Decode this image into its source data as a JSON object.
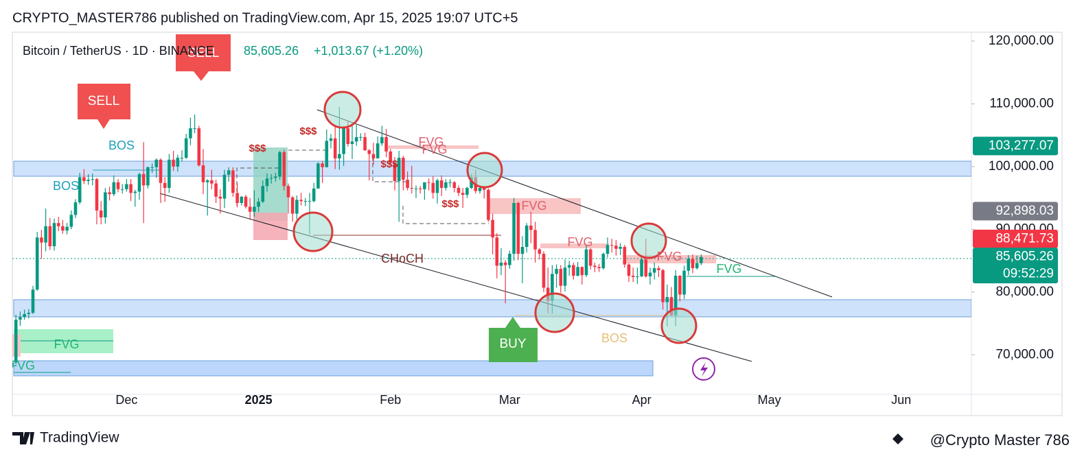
{
  "header": "CRYPTO_MASTER786 published on TradingView.com, Apr 15, 2025 19:07 UTC+5",
  "footer": {
    "brand": "TradingView",
    "watermark": "@Crypto Master 786"
  },
  "chart_data": {
    "type": "candlestick",
    "symbol": "Bitcoin / TetherUS · 1D · BINANCE",
    "last_price": "85,605.26",
    "change": "+1,013.67 (+1.20%)",
    "up_color": "#089981",
    "down_color": "#f23645",
    "grid": false,
    "ylim": [
      63700,
      121300
    ],
    "yticks": [
      {
        "value": 70000,
        "label": "70,000.00"
      },
      {
        "value": 80000,
        "label": "80,000.00"
      },
      {
        "value": 90000,
        "label": "90,000.00"
      },
      {
        "value": 100000,
        "label": "100,000.00"
      },
      {
        "value": 110000,
        "label": "110,000.00"
      },
      {
        "value": 120000,
        "label": "120,000.00"
      }
    ],
    "xticks": [
      "Dec",
      "2025",
      "Feb",
      "Mar",
      "Apr",
      "May",
      "Jun"
    ],
    "price_tags": [
      {
        "value": 103277.07,
        "label": "103,277.07",
        "color": "#089981"
      },
      {
        "value": 92898.03,
        "label": "92,898.03",
        "color": "#787b86"
      },
      {
        "value": 88471.73,
        "label": "88,471.73",
        "color": "#f23645"
      },
      {
        "value": 85605.26,
        "label": "85,605.26",
        "color": "#089981"
      }
    ],
    "countdown": "09:52:29",
    "annotations": [
      "SELL",
      "SELL",
      "BOS",
      "BOS",
      "BOS",
      "FVG",
      "FVG",
      "FVG",
      "FVG",
      "FVG",
      "FVG",
      "FVG",
      "FVG",
      "$$$",
      "$$$",
      "$$$",
      "$$$",
      "CHoCH",
      "BUY"
    ],
    "candles": [
      [
        68000,
        69500,
        66800,
        68800
      ],
      [
        68800,
        76400,
        68500,
        75600
      ],
      [
        75600,
        76900,
        74600,
        76000
      ],
      [
        76000,
        77200,
        75600,
        76500
      ],
      [
        76500,
        77300,
        75800,
        76700
      ],
      [
        76700,
        81000,
        76500,
        80400
      ],
      [
        80400,
        89600,
        80200,
        88700
      ],
      [
        88700,
        89900,
        85300,
        87900
      ],
      [
        87900,
        93300,
        86500,
        90500
      ],
      [
        90500,
        91800,
        86700,
        87300
      ],
      [
        87300,
        91700,
        86600,
        91000
      ],
      [
        91000,
        92000,
        89700,
        90500
      ],
      [
        90500,
        91500,
        89300,
        89800
      ],
      [
        89800,
        91000,
        89200,
        90400
      ],
      [
        90400,
        93000,
        90000,
        92300
      ],
      [
        92300,
        94800,
        91800,
        94300
      ],
      [
        94300,
        99000,
        94000,
        98300
      ],
      [
        98300,
        99600,
        97200,
        97700
      ],
      [
        97700,
        98800,
        97100,
        97900
      ],
      [
        97900,
        98900,
        97000,
        98000
      ],
      [
        98000,
        98200,
        90800,
        93000
      ],
      [
        93000,
        94500,
        90800,
        91900
      ],
      [
        91900,
        96600,
        90900,
        95900
      ],
      [
        95900,
        96800,
        94600,
        95600
      ],
      [
        95600,
        98600,
        95300,
        97500
      ],
      [
        97500,
        98000,
        95900,
        96400
      ],
      [
        96400,
        97200,
        95700,
        96400
      ],
      [
        96400,
        98000,
        96000,
        97200
      ],
      [
        97200,
        98000,
        94500,
        95800
      ],
      [
        95800,
        96300,
        93600,
        96000
      ],
      [
        96000,
        99000,
        94700,
        98800
      ],
      [
        98800,
        103900,
        91000,
        97000
      ],
      [
        97000,
        100000,
        96500,
        99900
      ],
      [
        99900,
        100500,
        99000,
        99900
      ],
      [
        99900,
        101300,
        98200,
        101100
      ],
      [
        101100,
        101300,
        94200,
        97400
      ],
      [
        97400,
        98300,
        94400,
        96600
      ],
      [
        96600,
        102000,
        95800,
        101100
      ],
      [
        101100,
        102500,
        99300,
        100000
      ],
      [
        100000,
        101900,
        99200,
        101400
      ],
      [
        101400,
        102600,
        100800,
        101400
      ],
      [
        101400,
        105200,
        101200,
        104500
      ],
      [
        104500,
        107800,
        103400,
        106100
      ],
      [
        106100,
        108300,
        105300,
        106100
      ],
      [
        106100,
        106500,
        100000,
        100200
      ],
      [
        100200,
        102800,
        95600,
        97500
      ],
      [
        97500,
        98000,
        92200,
        97800
      ],
      [
        97800,
        99500,
        96400,
        97300
      ],
      [
        97300,
        97900,
        94200,
        95200
      ],
      [
        95200,
        96400,
        92500,
        94900
      ],
      [
        94900,
        99500,
        93400,
        98700
      ],
      [
        98700,
        99900,
        97600,
        99400
      ],
      [
        99400,
        99900,
        95200,
        95800
      ],
      [
        95800,
        97400,
        93500,
        94200
      ],
      [
        94200,
        95300,
        93800,
        95200
      ],
      [
        95200,
        95500,
        93300,
        93600
      ],
      [
        93600,
        95000,
        91500,
        92800
      ],
      [
        92800,
        96200,
        92000,
        93600
      ],
      [
        93600,
        95000,
        92800,
        94400
      ],
      [
        94400,
        97800,
        94200,
        96900
      ],
      [
        96900,
        98900,
        96000,
        98100
      ],
      [
        98100,
        98800,
        97300,
        98200
      ],
      [
        98200,
        99000,
        97600,
        98400
      ],
      [
        98400,
        102500,
        97900,
        102300
      ],
      [
        102300,
        102700,
        96200,
        96900
      ],
      [
        96900,
        97300,
        92500,
        95100
      ],
      [
        95100,
        95300,
        91200,
        92500
      ],
      [
        92500,
        95400,
        91600,
        94700
      ],
      [
        94700,
        95800,
        93800,
        94500
      ],
      [
        94500,
        95000,
        93700,
        94500
      ],
      [
        94500,
        95800,
        89200,
        94500
      ],
      [
        94500,
        97400,
        94300,
        96500
      ],
      [
        96500,
        100700,
        96500,
        100500
      ],
      [
        100500,
        100900,
        97400,
        99900
      ],
      [
        99900,
        105900,
        99900,
        104100
      ],
      [
        104100,
        105200,
        102900,
        104500
      ],
      [
        104500,
        106400,
        99600,
        101300
      ],
      [
        101300,
        109500,
        99500,
        102000
      ],
      [
        102000,
        106400,
        100100,
        106100
      ],
      [
        106100,
        107200,
        103200,
        103600
      ],
      [
        103600,
        106900,
        101200,
        104000
      ],
      [
        104000,
        106800,
        103300,
        104700
      ],
      [
        104700,
        105300,
        104100,
        104700
      ],
      [
        104700,
        105400,
        102500,
        102600
      ],
      [
        102600,
        102800,
        97800,
        102000
      ],
      [
        102000,
        103800,
        100300,
        101300
      ],
      [
        101300,
        104800,
        101300,
        103700
      ],
      [
        103700,
        106500,
        103300,
        104700
      ],
      [
        104700,
        106000,
        101500,
        102400
      ],
      [
        102400,
        102800,
        100300,
        100600
      ],
      [
        100600,
        101500,
        96200,
        97700
      ],
      [
        97700,
        102500,
        91200,
        101400
      ],
      [
        101400,
        101700,
        96200,
        97900
      ],
      [
        97900,
        99200,
        96200,
        96600
      ],
      [
        96600,
        100100,
        95700,
        96500
      ],
      [
        96500,
        97000,
        95000,
        96500
      ],
      [
        96500,
        96900,
        95700,
        96400
      ],
      [
        96400,
        97400,
        94700,
        97500
      ],
      [
        97500,
        98100,
        96200,
        97400
      ],
      [
        97400,
        98500,
        94900,
        95800
      ],
      [
        95800,
        98100,
        94100,
        97800
      ],
      [
        97800,
        98600,
        95300,
        96600
      ],
      [
        96600,
        98000,
        96200,
        97500
      ],
      [
        97500,
        98000,
        96700,
        97500
      ],
      [
        97500,
        97700,
        95900,
        96600
      ],
      [
        96600,
        97000,
        95300,
        95800
      ],
      [
        95800,
        96600,
        93400,
        95500
      ],
      [
        95500,
        96800,
        95000,
        96600
      ],
      [
        96600,
        98800,
        96400,
        98300
      ],
      [
        98300,
        99500,
        95700,
        96100
      ],
      [
        96100,
        96900,
        95700,
        96600
      ],
      [
        96600,
        96700,
        94900,
        96300
      ],
      [
        96300,
        96500,
        91200,
        91500
      ],
      [
        91500,
        92500,
        86000,
        88700
      ],
      [
        88700,
        89400,
        82200,
        84200
      ],
      [
        84200,
        87000,
        82700,
        84700
      ],
      [
        84700,
        85100,
        78200,
        84300
      ],
      [
        84300,
        86600,
        83700,
        86100
      ],
      [
        86100,
        95000,
        85000,
        94200
      ],
      [
        94200,
        94400,
        85100,
        86100
      ],
      [
        86100,
        88900,
        81400,
        87200
      ],
      [
        87200,
        91000,
        86300,
        90600
      ],
      [
        90600,
        92800,
        87800,
        89900
      ],
      [
        89900,
        91200,
        84700,
        86800
      ],
      [
        86800,
        87000,
        85200,
        86100
      ],
      [
        86100,
        86500,
        80000,
        80700
      ],
      [
        80700,
        83900,
        76600,
        78600
      ],
      [
        78600,
        84300,
        76600,
        82900
      ],
      [
        82900,
        84400,
        80700,
        83700
      ],
      [
        83700,
        84300,
        79900,
        81000
      ],
      [
        81000,
        85200,
        80100,
        83900
      ],
      [
        83900,
        85000,
        82600,
        84300
      ],
      [
        84300,
        84700,
        82000,
        82600
      ],
      [
        82600,
        84800,
        82500,
        84000
      ],
      [
        84000,
        84100,
        81200,
        82700
      ],
      [
        82700,
        87400,
        82400,
        86800
      ],
      [
        86800,
        87000,
        83600,
        84200
      ],
      [
        84200,
        84700,
        83200,
        84000
      ],
      [
        84000,
        84500,
        83200,
        83800
      ],
      [
        83800,
        86300,
        83600,
        86100
      ],
      [
        86100,
        88700,
        85500,
        87500
      ],
      [
        87500,
        88500,
        86300,
        87400
      ],
      [
        87400,
        88300,
        85800,
        86900
      ],
      [
        86900,
        87800,
        85900,
        87200
      ],
      [
        87200,
        87500,
        83900,
        84400
      ],
      [
        84400,
        84600,
        81600,
        82600
      ],
      [
        82600,
        83900,
        81600,
        82400
      ],
      [
        82400,
        83900,
        81300,
        82500
      ],
      [
        82500,
        85500,
        82400,
        85200
      ],
      [
        85200,
        88500,
        82300,
        82500
      ],
      [
        82500,
        83900,
        81200,
        83100
      ],
      [
        83100,
        84700,
        82000,
        83800
      ],
      [
        83800,
        84200,
        82400,
        83500
      ],
      [
        83500,
        83700,
        77200,
        78400
      ],
      [
        78400,
        81200,
        74500,
        79200
      ],
      [
        79200,
        80800,
        76200,
        76300
      ],
      [
        76300,
        83500,
        74600,
        82600
      ],
      [
        82600,
        82700,
        78500,
        79600
      ],
      [
        79600,
        84200,
        78900,
        83400
      ],
      [
        83400,
        85900,
        82700,
        85300
      ],
      [
        85300,
        86000,
        83000,
        83800
      ],
      [
        83800,
        85800,
        83600,
        84600
      ],
      [
        84600,
        86000,
        84300,
        85600
      ]
    ]
  }
}
